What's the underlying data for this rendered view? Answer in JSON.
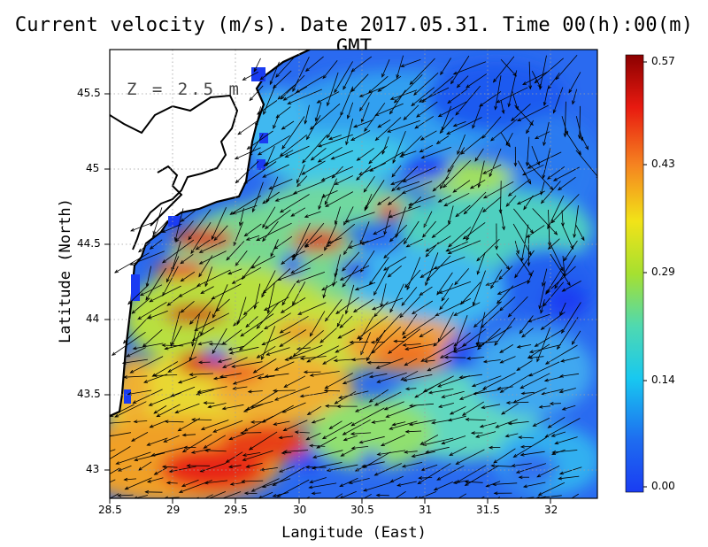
{
  "title": "Current velocity (m/s). Date 2017.05.31. Time 00(h):00(m) GMT",
  "depth_label": "Z = 2.5 m",
  "x_axis_label": "Langitude (East)",
  "y_axis_label": "Latitude (North)",
  "x_ticks": [
    "28.5",
    "29",
    "29.5",
    "30",
    "30.5",
    "31",
    "31.5",
    "32"
  ],
  "y_ticks": [
    "43",
    "43.5",
    "44",
    "44.5",
    "45",
    "45.5"
  ],
  "colorbar_labels": [
    "0.57",
    "0.43",
    "0.29",
    "0.14",
    "0.00"
  ],
  "colorbar_colors": [
    "#8b0000",
    "#e81a10",
    "#f58220",
    "#f2e318",
    "#a6e030",
    "#4fd9b0",
    "#18c8f0",
    "#1e6df0",
    "#1a3cf2"
  ],
  "map": {
    "lon_range": [
      28.5,
      32.4
    ],
    "lat_range": [
      42.82,
      45.8
    ],
    "speed_units": "m/s",
    "speed_max": 0.57,
    "land_color": "#ffffff",
    "coast_color": "#000000"
  }
}
